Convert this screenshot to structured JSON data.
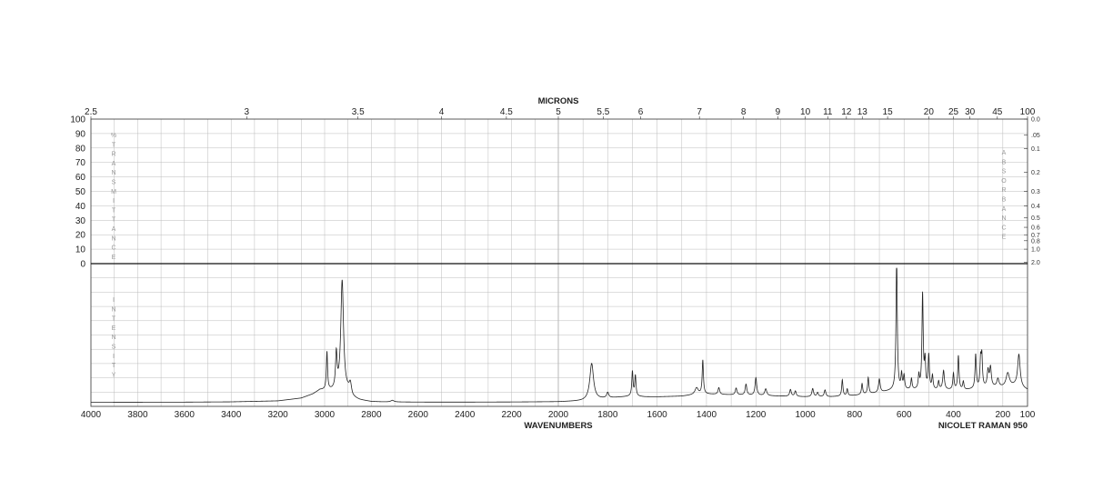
{
  "chart_data": {
    "type": "line",
    "instrument_label": "NICOLET RAMAN 950",
    "top_axis": {
      "label": "MICRONS",
      "ticks": [
        "2.5",
        "3",
        "3.5",
        "4",
        "4.5",
        "5",
        "5.5",
        "6",
        "7",
        "8",
        "9",
        "10",
        "11",
        "12",
        "13",
        "15",
        "20",
        "25",
        "30",
        "45",
        "100"
      ],
      "tick_values": [
        2.5,
        3,
        3.5,
        4,
        4.5,
        5,
        5.5,
        6,
        7,
        8,
        9,
        10,
        11,
        12,
        13,
        15,
        20,
        25,
        30,
        45,
        100
      ]
    },
    "x_axis": {
      "label": "WAVENUMBERS",
      "range": [
        4000,
        100
      ],
      "ticks": [
        "4000",
        "3800",
        "3600",
        "3400",
        "3200",
        "3000",
        "2800",
        "2600",
        "2400",
        "2200",
        "2000",
        "1800",
        "1600",
        "1400",
        "1200",
        "1000",
        "800",
        "600",
        "400",
        "200",
        "100"
      ],
      "tick_values": [
        4000,
        3800,
        3600,
        3400,
        3200,
        3000,
        2800,
        2600,
        2400,
        2200,
        2000,
        1800,
        1600,
        1400,
        1200,
        1000,
        800,
        600,
        400,
        200,
        100
      ]
    },
    "left_axis_upper": {
      "label_letters": [
        "%",
        "T",
        "R",
        "A",
        "N",
        "S",
        "M",
        "I",
        "T",
        "T",
        "A",
        "N",
        "C",
        "E"
      ],
      "ticks": [
        "100",
        "90",
        "80",
        "70",
        "60",
        "50",
        "40",
        "30",
        "20",
        "10",
        "0"
      ],
      "tick_values": [
        100,
        90,
        80,
        70,
        60,
        50,
        40,
        30,
        20,
        10,
        0
      ]
    },
    "right_axis_upper": {
      "label_letters": [
        "A",
        "B",
        "S",
        "O",
        "R",
        "B",
        "A",
        "N",
        "C",
        "E"
      ],
      "ticks": [
        "0.0",
        ".05",
        "0.1",
        "0.2",
        "0.3",
        "0.4",
        "0.5",
        "0.6",
        "0.7",
        "0.8",
        "1.0",
        "2.0"
      ],
      "tick_values": [
        0.0,
        0.05,
        0.1,
        0.2,
        0.3,
        0.4,
        0.5,
        0.6,
        0.7,
        0.8,
        1.0,
        2.0
      ]
    },
    "left_axis_lower": {
      "label_letters": [
        "I",
        "N",
        "T",
        "E",
        "N",
        "S",
        "I",
        "T",
        "Y"
      ]
    },
    "intensity_range": [
      0,
      1
    ],
    "grid": true,
    "baseline": [
      [
        4000,
        0.01
      ],
      [
        3600,
        0.011
      ],
      [
        3400,
        0.013
      ],
      [
        3200,
        0.02
      ],
      [
        3100,
        0.04
      ],
      [
        3050,
        0.07
      ],
      [
        3020,
        0.1
      ],
      [
        2900,
        0.08
      ],
      [
        2880,
        0.04
      ],
      [
        2850,
        0.025
      ],
      [
        2800,
        0.014
      ],
      [
        2750,
        0.012
      ],
      [
        2600,
        0.011
      ],
      [
        2400,
        0.011
      ],
      [
        2200,
        0.012
      ],
      [
        2000,
        0.014
      ],
      [
        1900,
        0.02
      ],
      [
        1800,
        0.04
      ],
      [
        1700,
        0.055
      ],
      [
        1650,
        0.05
      ],
      [
        1600,
        0.05
      ],
      [
        1500,
        0.055
      ],
      [
        1450,
        0.065
      ],
      [
        1400,
        0.07
      ],
      [
        1300,
        0.065
      ],
      [
        1200,
        0.06
      ],
      [
        1100,
        0.055
      ],
      [
        1000,
        0.05
      ],
      [
        900,
        0.05
      ],
      [
        800,
        0.06
      ],
      [
        700,
        0.08
      ],
      [
        640,
        0.1
      ],
      [
        600,
        0.1
      ],
      [
        550,
        0.1
      ],
      [
        500,
        0.1
      ],
      [
        450,
        0.1
      ],
      [
        400,
        0.1
      ],
      [
        350,
        0.1
      ],
      [
        300,
        0.11
      ],
      [
        250,
        0.12
      ],
      [
        200,
        0.12
      ],
      [
        150,
        0.13
      ],
      [
        100,
        0.1
      ]
    ],
    "peaks": [
      {
        "x": 2990,
        "h": 0.28,
        "w": 3
      },
      {
        "x": 2950,
        "h": 0.26,
        "w": 4
      },
      {
        "x": 2925,
        "h": 0.82,
        "w": 7
      },
      {
        "x": 2890,
        "h": 0.08,
        "w": 6
      },
      {
        "x": 2710,
        "h": 0.012,
        "w": 8
      },
      {
        "x": 1865,
        "h": 0.27,
        "w": 9
      },
      {
        "x": 1800,
        "h": 0.04,
        "w": 5
      },
      {
        "x": 1700,
        "h": 0.18,
        "w": 3
      },
      {
        "x": 1688,
        "h": 0.15,
        "w": 3
      },
      {
        "x": 1440,
        "h": 0.05,
        "w": 8
      },
      {
        "x": 1415,
        "h": 0.25,
        "w": 3
      },
      {
        "x": 1350,
        "h": 0.05,
        "w": 4
      },
      {
        "x": 1280,
        "h": 0.05,
        "w": 4
      },
      {
        "x": 1240,
        "h": 0.08,
        "w": 4
      },
      {
        "x": 1200,
        "h": 0.13,
        "w": 4
      },
      {
        "x": 1160,
        "h": 0.05,
        "w": 5
      },
      {
        "x": 1060,
        "h": 0.05,
        "w": 4
      },
      {
        "x": 1040,
        "h": 0.04,
        "w": 4
      },
      {
        "x": 970,
        "h": 0.06,
        "w": 4
      },
      {
        "x": 950,
        "h": 0.03,
        "w": 4
      },
      {
        "x": 920,
        "h": 0.05,
        "w": 4
      },
      {
        "x": 850,
        "h": 0.12,
        "w": 3
      },
      {
        "x": 830,
        "h": 0.05,
        "w": 3
      },
      {
        "x": 770,
        "h": 0.08,
        "w": 3
      },
      {
        "x": 745,
        "h": 0.12,
        "w": 3
      },
      {
        "x": 700,
        "h": 0.1,
        "w": 4
      },
      {
        "x": 630,
        "h": 0.98,
        "w": 3
      },
      {
        "x": 610,
        "h": 0.11,
        "w": 3
      },
      {
        "x": 600,
        "h": 0.1,
        "w": 3
      },
      {
        "x": 570,
        "h": 0.08,
        "w": 3
      },
      {
        "x": 540,
        "h": 0.1,
        "w": 3
      },
      {
        "x": 525,
        "h": 0.7,
        "w": 3
      },
      {
        "x": 515,
        "h": 0.2,
        "w": 3
      },
      {
        "x": 500,
        "h": 0.25,
        "w": 3
      },
      {
        "x": 485,
        "h": 0.1,
        "w": 3
      },
      {
        "x": 460,
        "h": 0.06,
        "w": 3
      },
      {
        "x": 440,
        "h": 0.14,
        "w": 4
      },
      {
        "x": 400,
        "h": 0.12,
        "w": 3
      },
      {
        "x": 380,
        "h": 0.25,
        "w": 3
      },
      {
        "x": 360,
        "h": 0.06,
        "w": 3
      },
      {
        "x": 310,
        "h": 0.25,
        "w": 3
      },
      {
        "x": 290,
        "h": 0.2,
        "w": 3
      },
      {
        "x": 285,
        "h": 0.22,
        "w": 3
      },
      {
        "x": 260,
        "h": 0.12,
        "w": 4
      },
      {
        "x": 250,
        "h": 0.14,
        "w": 4
      },
      {
        "x": 220,
        "h": 0.06,
        "w": 5
      },
      {
        "x": 180,
        "h": 0.1,
        "w": 8
      },
      {
        "x": 135,
        "h": 0.24,
        "w": 6
      }
    ]
  }
}
